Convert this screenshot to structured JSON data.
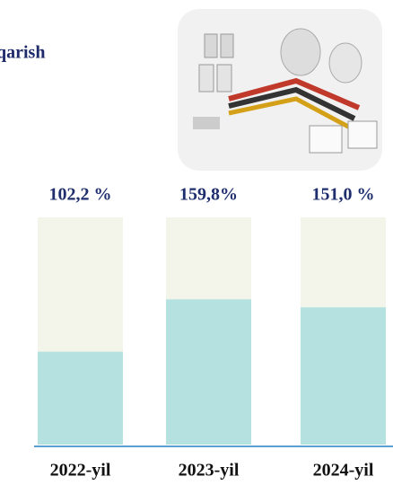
{
  "chart_data": {
    "type": "bar",
    "title": "qarish",
    "categories": [
      "2022-yil",
      "2023-yil",
      "2024-yil"
    ],
    "values": [
      102.2,
      159.8,
      151.0
    ],
    "value_labels": [
      "102,2 %",
      "159,8%",
      "151,0 %"
    ],
    "color": "#b5e2e1",
    "ylim": [
      0,
      250
    ]
  }
}
